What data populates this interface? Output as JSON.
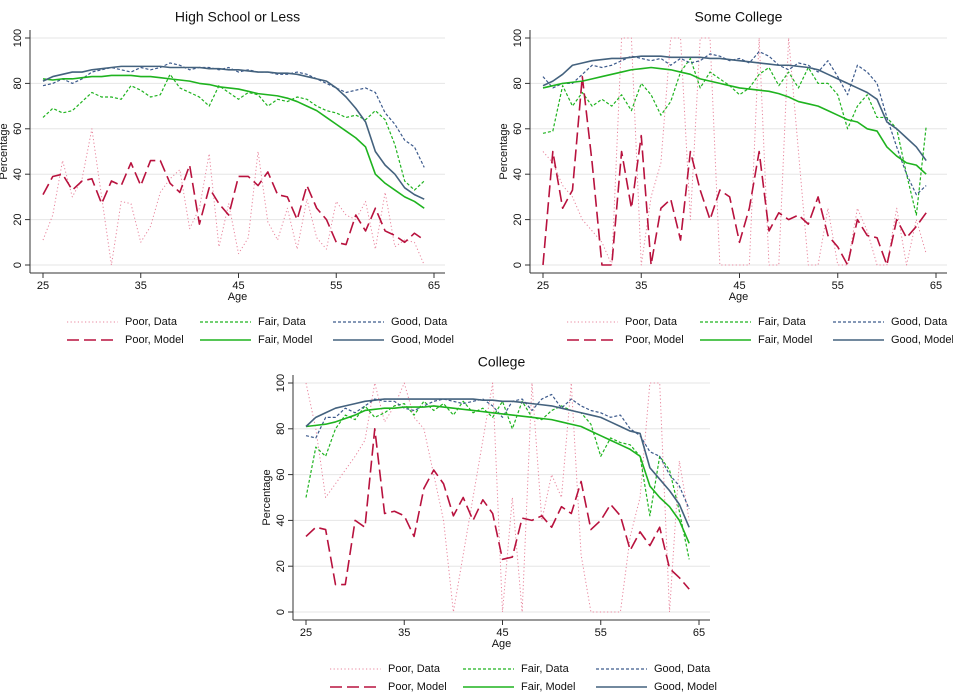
{
  "chart_data": [
    {
      "type": "line",
      "title": "High School or Less",
      "x_label": "Age",
      "y_label": "Percentage",
      "x": [
        25,
        26,
        27,
        28,
        29,
        30,
        31,
        32,
        33,
        34,
        35,
        36,
        37,
        38,
        39,
        40,
        41,
        42,
        43,
        44,
        45,
        46,
        47,
        48,
        49,
        50,
        51,
        52,
        53,
        54,
        55,
        56,
        57,
        58,
        59,
        60,
        61,
        62,
        63,
        64
      ],
      "xlim": [
        25,
        65
      ],
      "xticks": [
        25,
        35,
        45,
        55,
        65
      ],
      "ylim": [
        0,
        100
      ],
      "yticks": [
        0,
        20,
        40,
        60,
        80,
        100
      ],
      "grid": true,
      "series": [
        {
          "name": "Poor, Data",
          "color": "#e8849c",
          "dash": "dot",
          "values": [
            11,
            22,
            46,
            30,
            38,
            60,
            30,
            0,
            28,
            27,
            10,
            17,
            32,
            38,
            42,
            16,
            25,
            49,
            8,
            27,
            5,
            12,
            50,
            19,
            11,
            25,
            7,
            29,
            12,
            7,
            28,
            22,
            20,
            28,
            7,
            32,
            8,
            11,
            10,
            0
          ]
        },
        {
          "name": "Fair, Data",
          "color": "#1fb31f",
          "dash": "dash",
          "values": [
            65,
            69,
            67,
            68,
            72,
            76,
            74,
            74,
            73,
            79,
            77,
            74,
            75,
            84,
            78,
            76,
            74,
            70,
            79,
            76,
            73,
            76,
            75,
            70,
            73,
            72,
            74,
            73,
            70,
            68,
            67,
            65,
            66,
            64,
            68,
            64,
            53,
            37,
            33,
            37
          ]
        },
        {
          "name": "Good, Data",
          "color": "#3c5a8c",
          "dash": "dash",
          "values": [
            79,
            80,
            82,
            80,
            82,
            85,
            86,
            87,
            86,
            85,
            87,
            86,
            87,
            89,
            88,
            86,
            87,
            87,
            86,
            87,
            85,
            86,
            85,
            85,
            84,
            84,
            85,
            84,
            82,
            80,
            78,
            76,
            77,
            78,
            76,
            67,
            62,
            55,
            52,
            43
          ]
        },
        {
          "name": "Poor, Model",
          "color": "#b8123e",
          "dash": "longdash",
          "values": [
            31,
            39,
            40,
            33,
            37,
            38,
            27,
            37,
            35,
            45,
            35,
            46,
            46,
            36,
            32,
            44,
            18,
            34,
            27,
            22,
            39,
            39,
            35,
            41,
            31,
            30,
            20,
            35,
            25,
            20,
            10,
            9,
            22,
            15,
            25,
            15,
            13,
            10,
            14,
            11
          ]
        },
        {
          "name": "Fair, Model",
          "color": "#1fb31f",
          "dash": "solid",
          "values": [
            82,
            81.5,
            82,
            82,
            82.5,
            83,
            83,
            83.5,
            83.5,
            83.5,
            83,
            83,
            82.5,
            82,
            81.5,
            81,
            80,
            79.5,
            78.5,
            78,
            77.5,
            76.5,
            75.5,
            75,
            74.5,
            73.5,
            72,
            70,
            68,
            65,
            62,
            59,
            56,
            52,
            40,
            36,
            33,
            30,
            28,
            25
          ]
        },
        {
          "name": "Good, Model",
          "color": "#44627e",
          "dash": "solid",
          "values": [
            81,
            83,
            84,
            85,
            85,
            86,
            86.5,
            87,
            87.5,
            87.5,
            87.5,
            87.5,
            87.5,
            87,
            87,
            87,
            87,
            86.5,
            86.5,
            86,
            86,
            85.5,
            85,
            85,
            84.5,
            84.5,
            84,
            83,
            82,
            81,
            78,
            74,
            69,
            63,
            50,
            44,
            40,
            34,
            31,
            29
          ]
        }
      ]
    },
    {
      "type": "line",
      "title": "Some College",
      "x_label": "Age",
      "y_label": "Percentage",
      "x": [
        25,
        26,
        27,
        28,
        29,
        30,
        31,
        32,
        33,
        34,
        35,
        36,
        37,
        38,
        39,
        40,
        41,
        42,
        43,
        44,
        45,
        46,
        47,
        48,
        49,
        50,
        51,
        52,
        53,
        54,
        55,
        56,
        57,
        58,
        59,
        60,
        61,
        62,
        63,
        64
      ],
      "xlim": [
        25,
        65
      ],
      "xticks": [
        25,
        35,
        45,
        55,
        65
      ],
      "ylim": [
        0,
        100
      ],
      "yticks": [
        0,
        20,
        40,
        60,
        80,
        100
      ],
      "grid": true,
      "series": [
        {
          "name": "Poor, Data",
          "color": "#e8849c",
          "dash": "dot",
          "values": [
            50,
            45,
            35,
            30,
            20,
            15,
            10,
            0,
            100,
            100,
            0,
            30,
            45,
            100,
            100,
            20,
            100,
            100,
            0,
            0,
            0,
            0,
            100,
            0,
            0,
            100,
            50,
            0,
            0,
            25,
            0,
            0,
            25,
            15,
            0,
            0,
            25,
            0,
            20,
            5
          ]
        },
        {
          "name": "Fair, Data",
          "color": "#1fb31f",
          "dash": "dash",
          "values": [
            58,
            59,
            79,
            70,
            76,
            70,
            73,
            70,
            75,
            68,
            80,
            75,
            66,
            72,
            85,
            91,
            78,
            85,
            82,
            79,
            75,
            78,
            84,
            87,
            79,
            85,
            78,
            87,
            80,
            80,
            75,
            60,
            70,
            75,
            65,
            65,
            60,
            40,
            22,
            61
          ]
        },
        {
          "name": "Good, Data",
          "color": "#3c5a8c",
          "dash": "dash",
          "values": [
            83,
            78,
            80,
            80,
            84,
            88,
            87,
            88,
            90,
            92,
            91,
            90,
            91,
            88,
            91,
            89,
            90,
            93,
            92,
            90,
            91,
            89,
            94,
            92,
            88,
            86,
            89,
            88,
            85,
            90,
            83,
            75,
            88,
            85,
            80,
            65,
            52,
            40,
            31,
            35
          ]
        },
        {
          "name": "Poor, Model",
          "color": "#b8123e",
          "dash": "longdash",
          "values": [
            0,
            50,
            25,
            33,
            83,
            45,
            0,
            0,
            50,
            25,
            57,
            0,
            25,
            29,
            11,
            50,
            33,
            20,
            33,
            30,
            10,
            25,
            50,
            15,
            23,
            20,
            22,
            18,
            30,
            13,
            8,
            0,
            20,
            13,
            12,
            0,
            20,
            12,
            17,
            23
          ]
        },
        {
          "name": "Fair, Model",
          "color": "#1fb31f",
          "dash": "solid",
          "values": [
            78,
            79,
            80,
            80.5,
            81,
            82,
            83,
            84,
            85,
            86,
            86.5,
            87,
            86.5,
            86,
            85,
            84,
            82,
            81,
            80,
            79,
            78,
            77.5,
            77,
            76.5,
            75.5,
            74,
            72,
            71,
            70,
            68,
            66,
            64,
            63,
            60,
            59,
            52,
            48,
            45,
            44,
            40
          ]
        },
        {
          "name": "Good, Model",
          "color": "#44627e",
          "dash": "solid",
          "values": [
            79,
            81,
            84,
            88,
            89,
            90,
            90.5,
            91,
            91,
            91.5,
            92,
            92,
            92,
            91.5,
            91.5,
            91.5,
            91.5,
            91,
            91,
            90.5,
            90,
            89.5,
            89,
            88.5,
            88,
            88,
            87.5,
            87,
            86,
            84,
            82,
            80,
            78,
            76,
            73,
            63,
            60,
            56,
            52,
            46
          ]
        }
      ]
    },
    {
      "type": "line",
      "title": "College",
      "x_label": "Age",
      "y_label": "Percentage",
      "x": [
        25,
        26,
        27,
        28,
        29,
        30,
        31,
        32,
        33,
        34,
        35,
        36,
        37,
        38,
        39,
        40,
        41,
        42,
        43,
        44,
        45,
        46,
        47,
        48,
        49,
        50,
        51,
        52,
        53,
        54,
        55,
        56,
        57,
        58,
        59,
        60,
        61,
        62,
        63,
        64
      ],
      "xlim": [
        25,
        65
      ],
      "xticks": [
        25,
        35,
        45,
        55,
        65
      ],
      "ylim": [
        0,
        100
      ],
      "yticks": [
        0,
        20,
        40,
        60,
        80,
        100
      ],
      "grid": true,
      "series": [
        {
          "name": "Poor, Data",
          "color": "#e8849c",
          "dash": "dot",
          "values": [
            100,
            80,
            50,
            56,
            62,
            68,
            75,
            100,
            83,
            90,
            100,
            85,
            80,
            60,
            40,
            0,
            25,
            50,
            75,
            100,
            0,
            50,
            0,
            100,
            40,
            60,
            50,
            100,
            25,
            0,
            0,
            0,
            0,
            33,
            50,
            100,
            100,
            0,
            66,
            40
          ]
        },
        {
          "name": "Fair, Data",
          "color": "#1fb31f",
          "dash": "dash",
          "values": [
            50,
            72,
            68,
            80,
            86,
            84,
            90,
            85,
            87,
            90,
            91,
            86,
            92,
            88,
            91,
            86,
            92,
            87,
            89,
            85,
            92,
            80,
            92,
            85,
            84,
            88,
            90,
            88,
            87,
            82,
            68,
            76,
            74,
            73,
            68,
            42,
            68,
            62,
            44,
            23
          ]
        },
        {
          "name": "Good, Data",
          "color": "#3c5a8c",
          "dash": "dash",
          "values": [
            77,
            76,
            85,
            85,
            89,
            87,
            90,
            93,
            92,
            92,
            89,
            88,
            90,
            92,
            93,
            92,
            91,
            92,
            93,
            90,
            85,
            92,
            93,
            88,
            93,
            95,
            89,
            93,
            90,
            88,
            87,
            85,
            86,
            80,
            77,
            70,
            68,
            60,
            55,
            45
          ]
        },
        {
          "name": "Poor, Model",
          "color": "#b8123e",
          "dash": "longdash",
          "values": [
            33,
            37,
            36,
            12,
            12,
            40,
            37,
            80,
            43,
            44,
            42,
            33,
            54,
            62,
            56,
            42,
            50,
            40,
            49,
            43,
            23,
            24,
            41,
            40,
            42,
            37,
            46,
            43,
            57,
            36,
            40,
            47,
            42,
            27,
            35,
            29,
            37,
            19,
            15,
            10
          ]
        },
        {
          "name": "Fair, Model",
          "color": "#1fb31f",
          "dash": "solid",
          "values": [
            81,
            81.5,
            82,
            83,
            84.5,
            86,
            88,
            88.5,
            89,
            89,
            89.5,
            89.5,
            89.5,
            90,
            89.5,
            89,
            88.5,
            88,
            87.5,
            87,
            86.5,
            86,
            85.5,
            85,
            84.5,
            84,
            83,
            82,
            81,
            79,
            77,
            75,
            73,
            71,
            68,
            55,
            50,
            46,
            40,
            30
          ]
        },
        {
          "name": "Good, Model",
          "color": "#44627e",
          "dash": "solid",
          "values": [
            81,
            85,
            87,
            89,
            90,
            91,
            92,
            92.5,
            93,
            93,
            93,
            93,
            93,
            93,
            93,
            93,
            93,
            93,
            92.5,
            92.5,
            92,
            92,
            91.5,
            91,
            90.5,
            90,
            89,
            88,
            87,
            86,
            85,
            83,
            81,
            79,
            78,
            63,
            58,
            53,
            47,
            37
          ]
        }
      ]
    }
  ]
}
